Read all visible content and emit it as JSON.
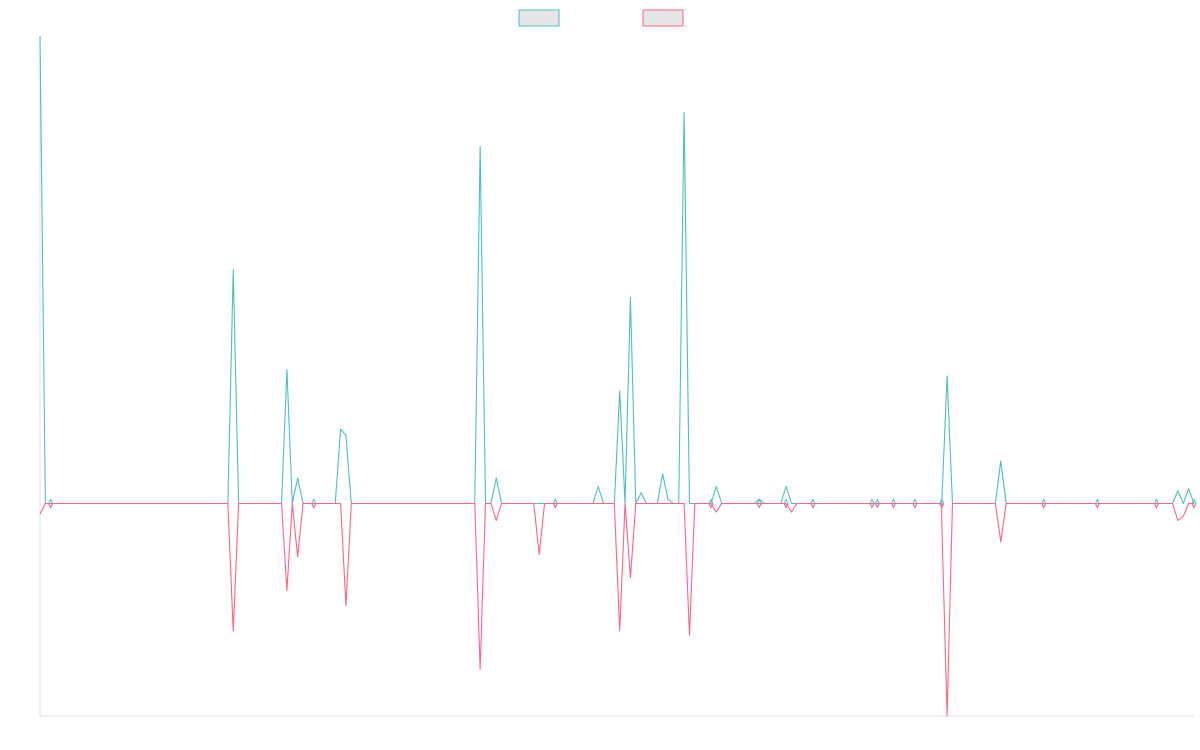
{
  "chart_data": {
    "type": "line",
    "title": "",
    "xlabel": "",
    "ylabel": "",
    "grid": false,
    "legend": "top-center",
    "x_count": 216,
    "ylim": [
      -100,
      220
    ],
    "series": [
      {
        "name": "",
        "color": "#4bc0c0",
        "fill": "#e6e6e6",
        "points": [
          [
            0,
            220
          ],
          [
            1,
            0
          ],
          [
            2,
            0
          ],
          [
            35,
            0
          ],
          [
            36,
            110
          ],
          [
            37,
            0
          ],
          [
            45,
            0
          ],
          [
            46,
            63
          ],
          [
            47,
            0
          ],
          [
            48,
            12
          ],
          [
            49,
            0
          ],
          [
            55,
            0
          ],
          [
            56,
            35
          ],
          [
            57,
            32
          ],
          [
            58,
            0
          ],
          [
            81,
            0
          ],
          [
            82,
            168
          ],
          [
            83,
            0
          ],
          [
            84,
            0
          ],
          [
            85,
            12
          ],
          [
            86,
            0
          ],
          [
            103,
            0
          ],
          [
            104,
            8
          ],
          [
            105,
            0
          ],
          [
            107,
            0
          ],
          [
            108,
            53
          ],
          [
            109,
            0
          ],
          [
            110,
            97
          ],
          [
            111,
            0
          ],
          [
            111,
            0
          ],
          [
            112,
            5
          ],
          [
            113,
            0
          ],
          [
            115,
            0
          ],
          [
            116,
            14
          ],
          [
            117,
            2
          ],
          [
            118,
            0
          ],
          [
            119,
            0
          ],
          [
            120,
            184
          ],
          [
            121,
            0
          ],
          [
            125,
            0
          ],
          [
            126,
            8
          ],
          [
            127,
            0
          ],
          [
            133,
            0
          ],
          [
            134,
            2
          ],
          [
            135,
            0
          ],
          [
            138,
            0
          ],
          [
            139,
            8
          ],
          [
            140,
            0
          ],
          [
            168,
            0
          ],
          [
            169,
            60
          ],
          [
            170,
            0
          ],
          [
            178,
            0
          ],
          [
            179,
            20
          ],
          [
            180,
            0
          ],
          [
            211,
            0
          ],
          [
            212,
            6
          ],
          [
            213,
            0
          ],
          [
            214,
            7
          ],
          [
            215,
            0
          ]
        ]
      },
      {
        "name": "",
        "color": "#ff6384",
        "fill": "#e6e6e6",
        "points": [
          [
            0,
            -5
          ],
          [
            1,
            0
          ],
          [
            2,
            0
          ],
          [
            35,
            0
          ],
          [
            36,
            -60
          ],
          [
            37,
            0
          ],
          [
            45,
            0
          ],
          [
            46,
            -41
          ],
          [
            47,
            0
          ],
          [
            48,
            -25
          ],
          [
            49,
            0
          ],
          [
            56,
            0
          ],
          [
            57,
            -48
          ],
          [
            58,
            0
          ],
          [
            81,
            0
          ],
          [
            82,
            -78
          ],
          [
            83,
            0
          ],
          [
            84,
            0
          ],
          [
            85,
            -8
          ],
          [
            86,
            0
          ],
          [
            92,
            0
          ],
          [
            93,
            -24
          ],
          [
            94,
            0
          ],
          [
            107,
            0
          ],
          [
            108,
            -60
          ],
          [
            109,
            0
          ],
          [
            110,
            -35
          ],
          [
            111,
            0
          ],
          [
            120,
            0
          ],
          [
            121,
            -62
          ],
          [
            122,
            0
          ],
          [
            125,
            0
          ],
          [
            126,
            -4
          ],
          [
            127,
            0
          ],
          [
            139,
            0
          ],
          [
            140,
            -4
          ],
          [
            141,
            0
          ],
          [
            168,
            0
          ],
          [
            168,
            -8
          ],
          [
            169,
            -100
          ],
          [
            170,
            0
          ],
          [
            178,
            0
          ],
          [
            179,
            -18
          ],
          [
            180,
            0
          ],
          [
            211,
            0
          ],
          [
            212,
            -8
          ],
          [
            213,
            -6
          ],
          [
            214,
            0
          ],
          [
            215,
            0
          ]
        ]
      }
    ],
    "markers": [
      2,
      51,
      96,
      125,
      134,
      139,
      144,
      155,
      156,
      159,
      163,
      168,
      187,
      197,
      208,
      215
    ]
  }
}
